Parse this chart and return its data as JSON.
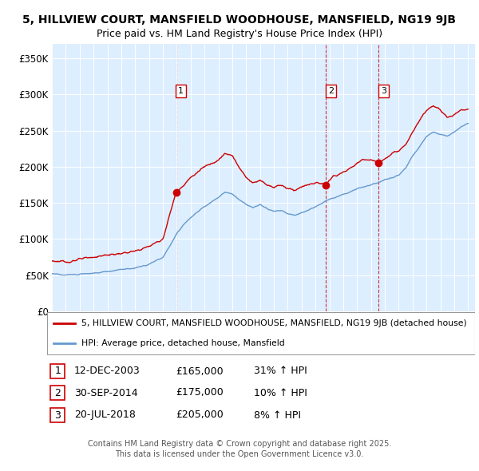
{
  "title_line1": "5, HILLVIEW COURT, MANSFIELD WOODHOUSE, MANSFIELD, NG19 9JB",
  "title_line2": "Price paid vs. HM Land Registry's House Price Index (HPI)",
  "ylabel_ticks": [
    "£0",
    "£50K",
    "£100K",
    "£150K",
    "£200K",
    "£250K",
    "£300K",
    "£350K"
  ],
  "ytick_values": [
    0,
    50000,
    100000,
    150000,
    200000,
    250000,
    300000,
    350000
  ],
  "ylim": [
    0,
    370000
  ],
  "xlim_start": 1995.0,
  "xlim_end": 2025.5,
  "legend_line1": "5, HILLVIEW COURT, MANSFIELD WOODHOUSE, MANSFIELD, NG19 9JB (detached house)",
  "legend_line2": "HPI: Average price, detached house, Mansfield",
  "line_color_red": "#cc0000",
  "line_color_blue": "#6699cc",
  "bg_color": "#ddeeff",
  "grid_color": "#ffffff",
  "transactions": [
    {
      "num": 1,
      "date": 2003.95,
      "price": 165000,
      "label": "12-DEC-2003",
      "amount": "£165,000",
      "change": "31% ↑ HPI"
    },
    {
      "num": 2,
      "date": 2014.75,
      "price": 175000,
      "label": "30-SEP-2014",
      "amount": "£175,000",
      "change": "10% ↑ HPI"
    },
    {
      "num": 3,
      "date": 2018.55,
      "price": 205000,
      "label": "20-JUL-2018",
      "amount": "£205,000",
      "change": "8% ↑ HPI"
    }
  ],
  "footer": "Contains HM Land Registry data © Crown copyright and database right 2025.\nThis data is licensed under the Open Government Licence v3.0.",
  "red_keypoints": [
    [
      1995.0,
      70000
    ],
    [
      1996.0,
      68000
    ],
    [
      1997.0,
      72000
    ],
    [
      1998.0,
      75000
    ],
    [
      1999.0,
      78000
    ],
    [
      2000.0,
      80000
    ],
    [
      2001.0,
      83000
    ],
    [
      2002.0,
      90000
    ],
    [
      2003.0,
      100000
    ],
    [
      2003.95,
      165000
    ],
    [
      2004.5,
      175000
    ],
    [
      2005.0,
      185000
    ],
    [
      2006.0,
      200000
    ],
    [
      2007.0,
      210000
    ],
    [
      2007.5,
      218000
    ],
    [
      2008.0,
      215000
    ],
    [
      2008.5,
      200000
    ],
    [
      2009.0,
      185000
    ],
    [
      2009.5,
      178000
    ],
    [
      2010.0,
      182000
    ],
    [
      2010.5,
      175000
    ],
    [
      2011.0,
      172000
    ],
    [
      2011.5,
      175000
    ],
    [
      2012.0,
      170000
    ],
    [
      2012.5,
      168000
    ],
    [
      2013.0,
      172000
    ],
    [
      2013.5,
      175000
    ],
    [
      2014.0,
      178000
    ],
    [
      2014.75,
      175000
    ],
    [
      2015.0,
      183000
    ],
    [
      2015.5,
      188000
    ],
    [
      2016.0,
      192000
    ],
    [
      2016.5,
      198000
    ],
    [
      2017.0,
      205000
    ],
    [
      2017.5,
      210000
    ],
    [
      2018.0,
      210000
    ],
    [
      2018.55,
      205000
    ],
    [
      2019.0,
      210000
    ],
    [
      2019.5,
      218000
    ],
    [
      2020.0,
      222000
    ],
    [
      2020.5,
      230000
    ],
    [
      2021.0,
      248000
    ],
    [
      2021.5,
      265000
    ],
    [
      2022.0,
      278000
    ],
    [
      2022.5,
      285000
    ],
    [
      2023.0,
      278000
    ],
    [
      2023.5,
      268000
    ],
    [
      2024.0,
      272000
    ],
    [
      2024.5,
      278000
    ],
    [
      2025.0,
      280000
    ]
  ],
  "blue_keypoints": [
    [
      1995.0,
      52000
    ],
    [
      1996.0,
      50000
    ],
    [
      1997.0,
      52000
    ],
    [
      1998.0,
      53000
    ],
    [
      1999.0,
      55000
    ],
    [
      2000.0,
      58000
    ],
    [
      2001.0,
      60000
    ],
    [
      2002.0,
      65000
    ],
    [
      2003.0,
      75000
    ],
    [
      2003.5,
      90000
    ],
    [
      2004.0,
      108000
    ],
    [
      2004.5,
      120000
    ],
    [
      2005.0,
      130000
    ],
    [
      2006.0,
      145000
    ],
    [
      2007.0,
      158000
    ],
    [
      2007.5,
      165000
    ],
    [
      2008.0,
      162000
    ],
    [
      2008.5,
      155000
    ],
    [
      2009.0,
      148000
    ],
    [
      2009.5,
      143000
    ],
    [
      2010.0,
      148000
    ],
    [
      2010.5,
      142000
    ],
    [
      2011.0,
      138000
    ],
    [
      2011.5,
      140000
    ],
    [
      2012.0,
      135000
    ],
    [
      2012.5,
      133000
    ],
    [
      2013.0,
      136000
    ],
    [
      2013.5,
      140000
    ],
    [
      2014.0,
      145000
    ],
    [
      2014.5,
      150000
    ],
    [
      2015.0,
      155000
    ],
    [
      2015.5,
      158000
    ],
    [
      2016.0,
      162000
    ],
    [
      2016.5,
      165000
    ],
    [
      2017.0,
      170000
    ],
    [
      2017.5,
      172000
    ],
    [
      2018.0,
      175000
    ],
    [
      2018.5,
      178000
    ],
    [
      2019.0,
      182000
    ],
    [
      2019.5,
      185000
    ],
    [
      2020.0,
      188000
    ],
    [
      2020.5,
      198000
    ],
    [
      2021.0,
      215000
    ],
    [
      2021.5,
      228000
    ],
    [
      2022.0,
      242000
    ],
    [
      2022.5,
      248000
    ],
    [
      2023.0,
      245000
    ],
    [
      2023.5,
      242000
    ],
    [
      2024.0,
      248000
    ],
    [
      2024.5,
      255000
    ],
    [
      2025.0,
      260000
    ]
  ]
}
